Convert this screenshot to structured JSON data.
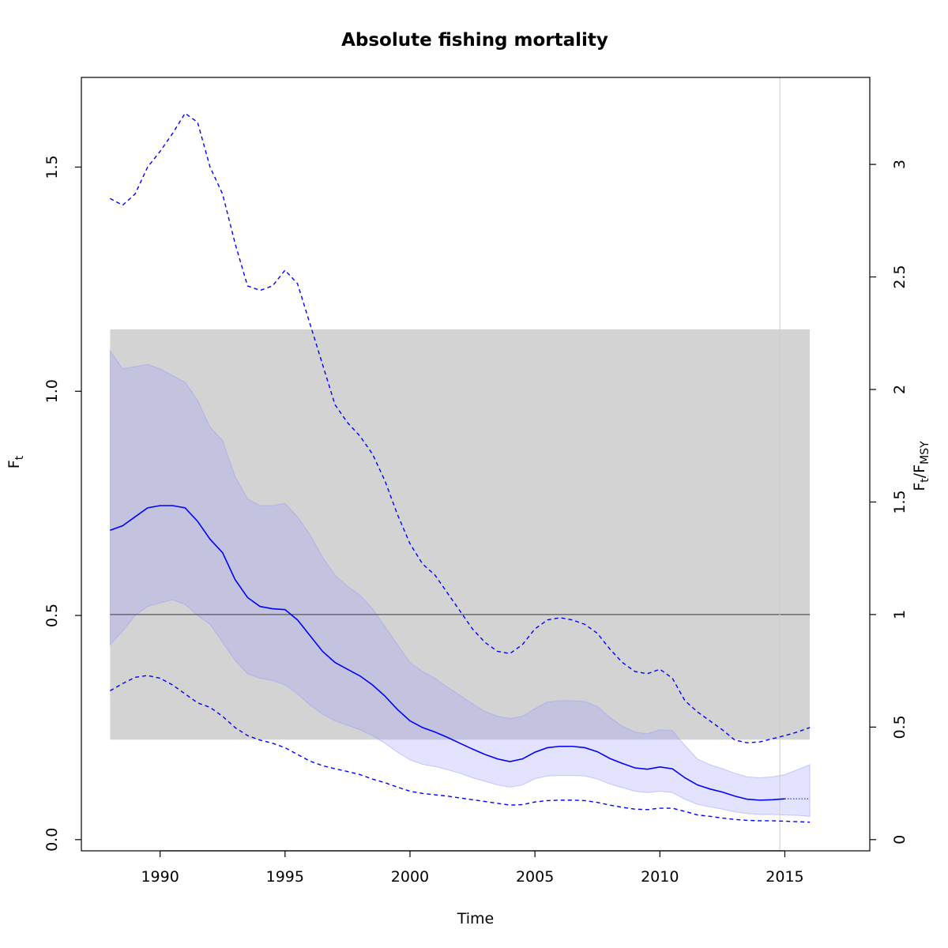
{
  "chart_data": {
    "type": "line",
    "title": "Absolute fishing mortality",
    "xlabel": "Time",
    "ylabel": {
      "main": "F",
      "sub": "t"
    },
    "y2label": {
      "main1": "F",
      "sub1": "t",
      "sep": "/",
      "main2": "F",
      "sub2": "MSY"
    },
    "xlim": [
      1986.85,
      2018.4
    ],
    "ylim": [
      -0.025,
      1.7
    ],
    "y2_scale": 0.502,
    "x_ticks": [
      1990,
      1995,
      2000,
      2005,
      2010,
      2015
    ],
    "x_tick_labels": [
      "1990",
      "1995",
      "2000",
      "2005",
      "2010",
      "2015"
    ],
    "y_ticks": [
      0,
      0.5,
      1,
      1.5
    ],
    "y_tick_labels": [
      "0.0",
      "0.5",
      "1.0",
      "1.5"
    ],
    "y2_ticks": [
      0,
      0.5,
      1,
      1.5,
      2,
      2.5,
      3
    ],
    "y2_tick_labels": [
      "0",
      "0.5",
      "1",
      "1.5",
      "2",
      "2.5",
      "3"
    ],
    "grid": false,
    "fmsy_band": {
      "x": [
        1988,
        2016
      ],
      "y": [
        0.223,
        1.138
      ],
      "color": "#d3d3d3"
    },
    "fmsy_line": {
      "y": 0.502,
      "color": "#555555"
    },
    "vline": {
      "x": 2014.8,
      "color": "#cccccc"
    },
    "series": [
      {
        "role": "estimate",
        "color": "#0000ff",
        "x": [
          1988,
          1988.5,
          1989,
          1989.5,
          1990,
          1990.5,
          1991,
          1991.5,
          1992,
          1992.5,
          1993,
          1993.5,
          1994,
          1994.5,
          1995,
          1995.5,
          1996,
          1996.5,
          1997,
          1997.5,
          1998,
          1998.5,
          1999,
          1999.5,
          2000,
          2000.5,
          2001,
          2001.5,
          2002,
          2002.5,
          2003,
          2003.5,
          2004,
          2004.5,
          2005,
          2005.5,
          2006,
          2006.5,
          2007,
          2007.5,
          2008,
          2008.5,
          2009,
          2009.5,
          2010,
          2010.5,
          2011,
          2011.5,
          2012,
          2012.5,
          2013,
          2013.5,
          2014,
          2014.5,
          2015
        ],
        "y": [
          0.69,
          0.7,
          0.72,
          0.74,
          0.745,
          0.745,
          0.74,
          0.71,
          0.67,
          0.64,
          0.58,
          0.54,
          0.52,
          0.515,
          0.513,
          0.49,
          0.455,
          0.42,
          0.395,
          0.38,
          0.365,
          0.345,
          0.32,
          0.29,
          0.265,
          0.25,
          0.24,
          0.228,
          0.215,
          0.202,
          0.19,
          0.18,
          0.174,
          0.18,
          0.195,
          0.205,
          0.208,
          0.208,
          0.205,
          0.196,
          0.181,
          0.17,
          0.16,
          0.157,
          0.162,
          0.158,
          0.138,
          0.122,
          0.113,
          0.106,
          0.097,
          0.09,
          0.088,
          0.089,
          0.091
        ]
      },
      {
        "role": "forecast",
        "color": "#0000ff",
        "x": [
          2015,
          2016
        ],
        "y": [
          0.091,
          0.091
        ]
      }
    ],
    "ci_inner": {
      "color": "#9999ff",
      "x": [
        1988,
        1988.5,
        1989,
        1989.5,
        1990,
        1990.5,
        1991,
        1991.5,
        1992,
        1992.5,
        1993,
        1993.5,
        1994,
        1994.5,
        1995,
        1995.5,
        1996,
        1996.5,
        1997,
        1997.5,
        1998,
        1998.5,
        1999,
        1999.5,
        2000,
        2000.5,
        2001,
        2001.5,
        2002,
        2002.5,
        2003,
        2003.5,
        2004,
        2004.5,
        2005,
        2005.5,
        2006,
        2006.5,
        2007,
        2007.5,
        2008,
        2008.5,
        2009,
        2009.5,
        2010,
        2010.5,
        2011,
        2011.5,
        2012,
        2012.5,
        2013,
        2013.5,
        2014,
        2014.5,
        2015,
        2015.5,
        2016
      ],
      "lower": [
        0.435,
        0.465,
        0.5,
        0.52,
        0.528,
        0.535,
        0.525,
        0.5,
        0.48,
        0.44,
        0.4,
        0.37,
        0.36,
        0.355,
        0.345,
        0.325,
        0.3,
        0.28,
        0.265,
        0.255,
        0.245,
        0.232,
        0.215,
        0.195,
        0.178,
        0.168,
        0.163,
        0.156,
        0.148,
        0.138,
        0.13,
        0.122,
        0.117,
        0.122,
        0.136,
        0.142,
        0.143,
        0.143,
        0.142,
        0.135,
        0.124,
        0.116,
        0.108,
        0.105,
        0.108,
        0.105,
        0.09,
        0.079,
        0.073,
        0.068,
        0.062,
        0.058,
        0.056,
        0.056,
        0.055,
        0.054,
        0.052
      ],
      "upper": [
        1.09,
        1.05,
        1.055,
        1.06,
        1.05,
        1.035,
        1.02,
        0.98,
        0.92,
        0.89,
        0.81,
        0.76,
        0.745,
        0.745,
        0.75,
        0.72,
        0.68,
        0.63,
        0.59,
        0.565,
        0.545,
        0.515,
        0.475,
        0.435,
        0.395,
        0.375,
        0.36,
        0.34,
        0.322,
        0.303,
        0.286,
        0.275,
        0.27,
        0.275,
        0.292,
        0.307,
        0.31,
        0.31,
        0.308,
        0.297,
        0.272,
        0.253,
        0.24,
        0.236,
        0.245,
        0.243,
        0.21,
        0.18,
        0.167,
        0.158,
        0.148,
        0.14,
        0.138,
        0.14,
        0.145,
        0.156,
        0.167
      ]
    },
    "ci_outer": {
      "color": "#0000ff",
      "x": [
        1988,
        1988.5,
        1989,
        1989.5,
        1990,
        1990.5,
        1991,
        1991.5,
        1992,
        1992.5,
        1993,
        1993.5,
        1994,
        1994.5,
        1995,
        1995.5,
        1996,
        1996.5,
        1997,
        1997.5,
        1998,
        1998.5,
        1999,
        1999.5,
        2000,
        2000.5,
        2001,
        2001.5,
        2002,
        2002.5,
        2003,
        2003.5,
        2004,
        2004.5,
        2005,
        2005.5,
        2006,
        2006.5,
        2007,
        2007.5,
        2008,
        2008.5,
        2009,
        2009.5,
        2010,
        2010.5,
        2011,
        2011.5,
        2012,
        2012.5,
        2013,
        2013.5,
        2014,
        2014.5,
        2015,
        2015.5,
        2016
      ],
      "lower": [
        0.332,
        0.348,
        0.362,
        0.366,
        0.36,
        0.345,
        0.325,
        0.305,
        0.295,
        0.275,
        0.25,
        0.232,
        0.222,
        0.215,
        0.205,
        0.19,
        0.175,
        0.165,
        0.158,
        0.152,
        0.145,
        0.135,
        0.127,
        0.117,
        0.108,
        0.103,
        0.1,
        0.097,
        0.093,
        0.089,
        0.085,
        0.081,
        0.077,
        0.078,
        0.084,
        0.087,
        0.088,
        0.088,
        0.087,
        0.083,
        0.077,
        0.072,
        0.068,
        0.067,
        0.07,
        0.07,
        0.063,
        0.055,
        0.052,
        0.048,
        0.045,
        0.043,
        0.042,
        0.042,
        0.041,
        0.04,
        0.039
      ],
      "upper": [
        1.43,
        1.415,
        1.44,
        1.5,
        1.535,
        1.575,
        1.62,
        1.6,
        1.5,
        1.44,
        1.33,
        1.235,
        1.225,
        1.235,
        1.27,
        1.24,
        1.15,
        1.06,
        0.97,
        0.93,
        0.9,
        0.86,
        0.8,
        0.725,
        0.66,
        0.615,
        0.59,
        0.55,
        0.51,
        0.47,
        0.44,
        0.42,
        0.415,
        0.435,
        0.47,
        0.49,
        0.495,
        0.49,
        0.48,
        0.46,
        0.425,
        0.395,
        0.375,
        0.37,
        0.38,
        0.36,
        0.31,
        0.285,
        0.265,
        0.245,
        0.222,
        0.216,
        0.218,
        0.225,
        0.232,
        0.24,
        0.25
      ]
    }
  }
}
